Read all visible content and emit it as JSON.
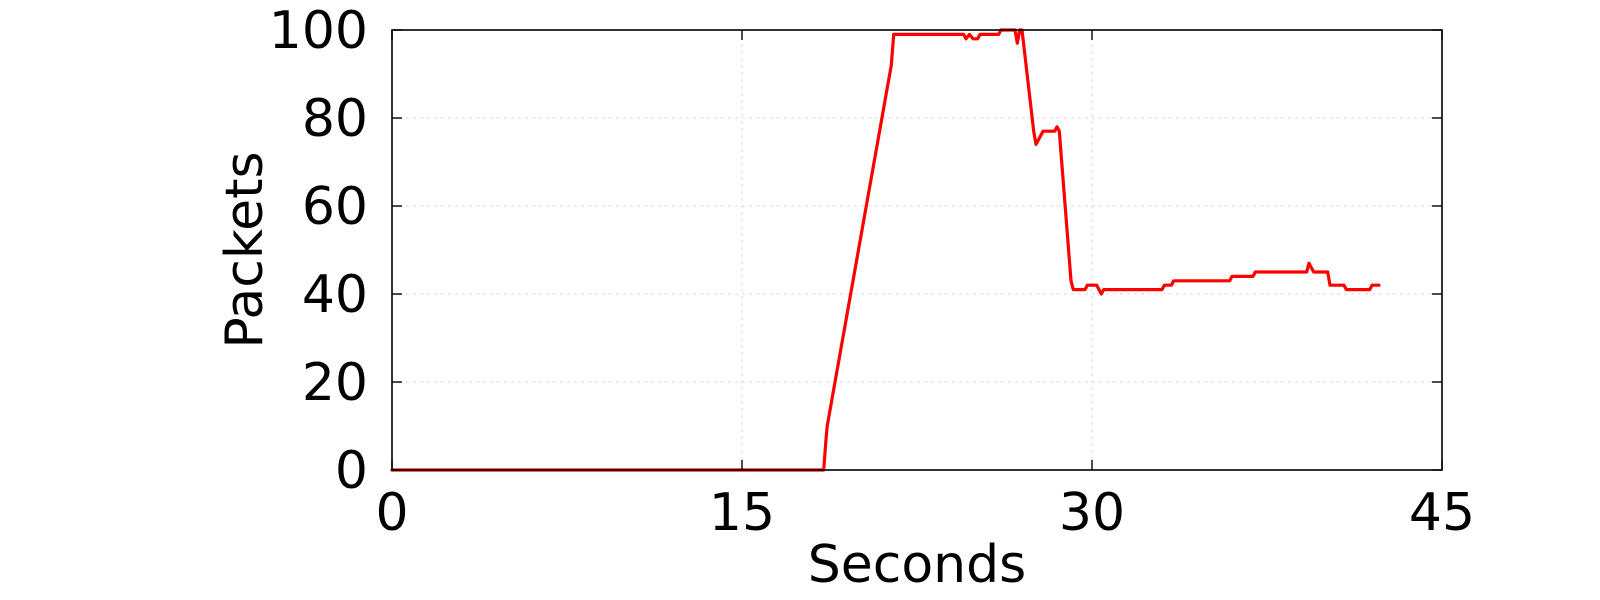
{
  "chart_data": {
    "type": "line",
    "title": "",
    "xlabel": "Seconds",
    "ylabel": "Packets",
    "xlim": [
      0,
      45
    ],
    "ylim": [
      0,
      100
    ],
    "xticks": [
      "0",
      "15",
      "30",
      "45"
    ],
    "yticks": [
      "0",
      "20",
      "40",
      "60",
      "80",
      "100"
    ],
    "grid": true,
    "legend": "none",
    "series": [
      {
        "color": "#ff0000",
        "x": [
          0,
          18.5,
          18.6,
          18.65,
          21.4,
          21.5,
          24.5,
          24.6,
          24.75,
          24.9,
          25.1,
          25.2,
          26.0,
          26.1,
          26.7,
          26.8,
          26.9,
          27.0,
          27.5,
          27.6,
          27.8,
          27.9,
          28.4,
          28.5,
          28.6,
          29.1,
          29.2,
          29.7,
          29.8,
          30.2,
          30.3,
          30.4,
          30.5,
          31.0,
          33.0,
          33.1,
          33.4,
          33.5,
          35.9,
          36.0,
          36.9,
          37.0,
          39.2,
          39.3,
          39.4,
          39.5,
          40.1,
          40.2,
          40.8,
          40.9,
          41.9,
          42.0,
          42.3
        ],
        "y": [
          0,
          0,
          7,
          10,
          92,
          99,
          99,
          98,
          99,
          98,
          98,
          99,
          99,
          100,
          100,
          97,
          100,
          100,
          77,
          74,
          76,
          77,
          77,
          78,
          77,
          43,
          41,
          41,
          42,
          42,
          41,
          40,
          41,
          41,
          41,
          42,
          42,
          43,
          43,
          44,
          44,
          45,
          45,
          47,
          46,
          45,
          45,
          42,
          42,
          41,
          41,
          42,
          42
        ]
      }
    ]
  }
}
